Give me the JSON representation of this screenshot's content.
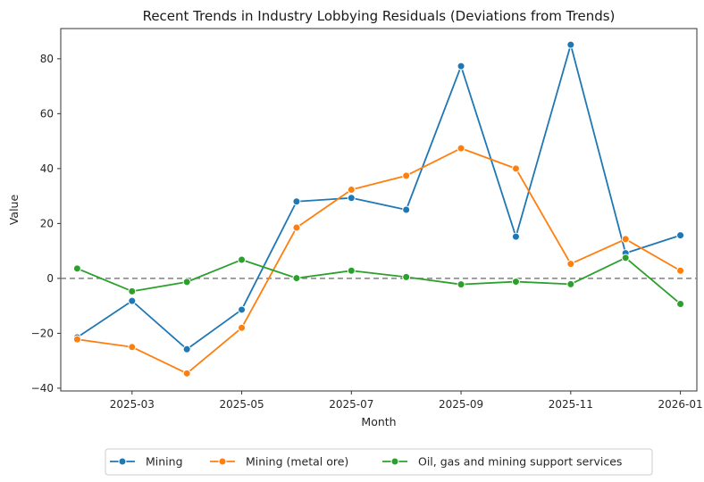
{
  "chart_data": {
    "type": "line",
    "title": "Recent Trends in Industry Lobbying Residuals (Deviations from Trends)",
    "xlabel": "Month",
    "ylabel": "Value",
    "x": [
      "2025-02",
      "2025-03",
      "2025-04",
      "2025-05",
      "2025-06",
      "2025-07",
      "2025-08",
      "2025-09",
      "2025-10",
      "2025-11",
      "2025-12",
      "2026-01"
    ],
    "x_ticks": [
      "2025-03",
      "2025-05",
      "2025-07",
      "2025-09",
      "2025-11",
      "2026-01"
    ],
    "y_ticks": [
      -40,
      -20,
      0,
      20,
      40,
      60,
      80
    ],
    "ylim": [
      -41,
      91
    ],
    "reference_line": 0,
    "grid": false,
    "legend_position": "bottom-center",
    "series": [
      {
        "name": "Mining",
        "color": "#1f77b4",
        "values": [
          -21.5,
          -8.2,
          -25.8,
          -11.4,
          28.0,
          29.3,
          25.0,
          77.3,
          15.2,
          85.1,
          9.2,
          15.7
        ]
      },
      {
        "name": "Mining (metal ore)",
        "color": "#ff7f0e",
        "values": [
          -22.2,
          -25.0,
          -34.6,
          -18.0,
          18.5,
          32.3,
          37.4,
          47.4,
          40.0,
          5.3,
          14.3,
          2.8
        ]
      },
      {
        "name": "Oil, gas and mining support services",
        "color": "#2ca02c",
        "values": [
          3.6,
          -4.7,
          -1.3,
          6.8,
          0.1,
          2.8,
          0.5,
          -2.2,
          -1.2,
          -2.1,
          7.5,
          -9.3
        ]
      }
    ]
  }
}
